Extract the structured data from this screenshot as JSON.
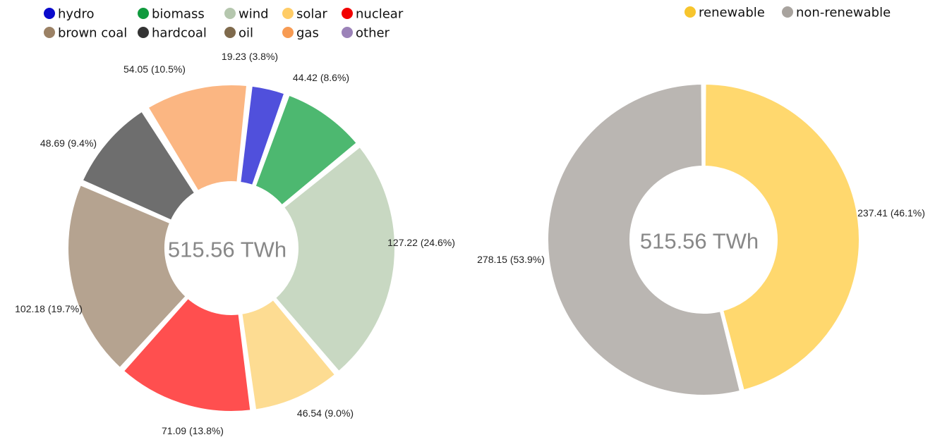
{
  "chart_data": [
    {
      "type": "donut",
      "center_label": "515.56 TWh",
      "legend_position": "top-left",
      "series": [
        {
          "name": "hydro",
          "value": 19.23,
          "label": "19.23 (3.8%)",
          "color": "#5050dc"
        },
        {
          "name": "biomass",
          "value": 44.42,
          "label": "44.42 (8.6%)",
          "color": "#4db870"
        },
        {
          "name": "wind",
          "value": 127.22,
          "label": "127.22 (24.6%)",
          "color": "#c8d8c2"
        },
        {
          "name": "solar",
          "value": 46.54,
          "label": "46.54 (9.0%)",
          "color": "#fddc92"
        },
        {
          "name": "nuclear",
          "value": 71.09,
          "label": "71.09 (13.8%)",
          "color": "#ff4f4f"
        },
        {
          "name": "brown coal",
          "value": 102.18,
          "label": "102.18 (19.7%)",
          "color": "#b5a390"
        },
        {
          "name": "hardcoal",
          "value": 48.69,
          "label": "48.69 (9.4%)",
          "color": "#6e6e6e"
        },
        {
          "name": "oil",
          "value": 1.2,
          "label": "",
          "color": "#8c7a64"
        },
        {
          "name": "gas",
          "value": 54.05,
          "label": "54.05 (10.5%)",
          "color": "#fbb682"
        },
        {
          "name": "other",
          "value": 0,
          "label": "",
          "color": "#9b82b8"
        }
      ],
      "legend": [
        {
          "name": "hydro",
          "color": "#0a0acc"
        },
        {
          "name": "biomass",
          "color": "#109a3e"
        },
        {
          "name": "wind",
          "color": "#b5c7ae"
        },
        {
          "name": "solar",
          "color": "#ffcc66"
        },
        {
          "name": "nuclear",
          "color": "#f20000"
        },
        {
          "name": "brown coal",
          "color": "#9b8165"
        },
        {
          "name": "hardcoal",
          "color": "#333333"
        },
        {
          "name": "oil",
          "color": "#7f6a4c"
        },
        {
          "name": "gas",
          "color": "#f79b53"
        },
        {
          "name": "other",
          "color": "#9b82b8"
        }
      ]
    },
    {
      "type": "donut",
      "center_label": "515.56 TWh",
      "legend_position": "top-right",
      "series": [
        {
          "name": "renewable",
          "value": 237.41,
          "label": "237.41 (46.1%)",
          "color": "#ffd86e"
        },
        {
          "name": "non-renewable",
          "value": 278.15,
          "label": "278.15 (53.9%)",
          "color": "#bab6b2"
        }
      ],
      "legend": [
        {
          "name": "renewable",
          "color": "#f7c52d"
        },
        {
          "name": "non-renewable",
          "color": "#a8a39e"
        }
      ]
    }
  ]
}
